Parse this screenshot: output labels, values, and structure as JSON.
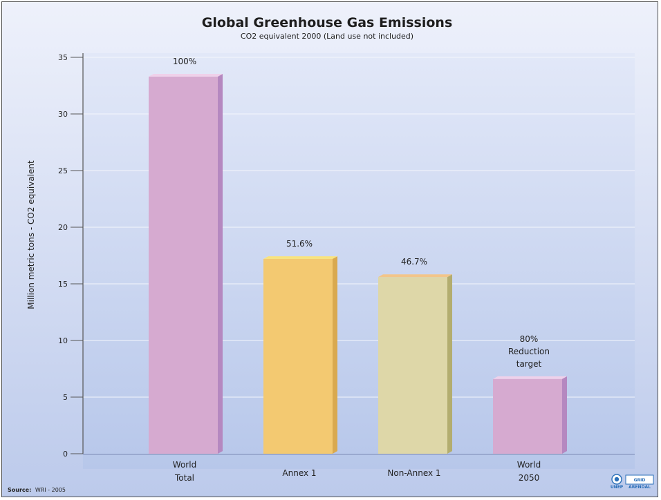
{
  "chart_data": {
    "type": "bar",
    "title": "Global Greenhouse Gas Emissions",
    "subtitle": "CO2 equivalent 2000 (Land use not included)",
    "ylabel": "Million metric tons - CO2 equivalent",
    "xlabel": "",
    "ylim": [
      0,
      35
    ],
    "yticks": [
      0,
      5,
      10,
      15,
      20,
      25,
      30,
      35
    ],
    "grid": true,
    "categories": [
      {
        "lines": [
          "World",
          "Total"
        ]
      },
      {
        "lines": [
          "Annex 1"
        ]
      },
      {
        "lines": [
          "Non-Annex 1"
        ]
      },
      {
        "lines": [
          "World",
          "2050"
        ]
      }
    ],
    "values": [
      33.3,
      17.2,
      15.6,
      6.6
    ],
    "data_labels": [
      [
        "100%"
      ],
      [
        "51.6%"
      ],
      [
        "46.7%"
      ],
      [
        "80%",
        "Reduction",
        "target"
      ]
    ],
    "colors": {
      "front": [
        "#d6aad0",
        "#f3c971",
        "#ded7a8",
        "#d6aad0"
      ],
      "side": [
        "#b588c0",
        "#d9a94f",
        "#b3ad6f",
        "#b588c0"
      ],
      "top": [
        "#efd1ea",
        "#f9e47d",
        "#f2c58a",
        "#efd1ea"
      ]
    }
  },
  "source": {
    "label": "Source:",
    "text": "WRI - 2005"
  },
  "logo": {
    "left": "UNEP",
    "right": "GRID",
    "sub": "ARENDAL"
  }
}
